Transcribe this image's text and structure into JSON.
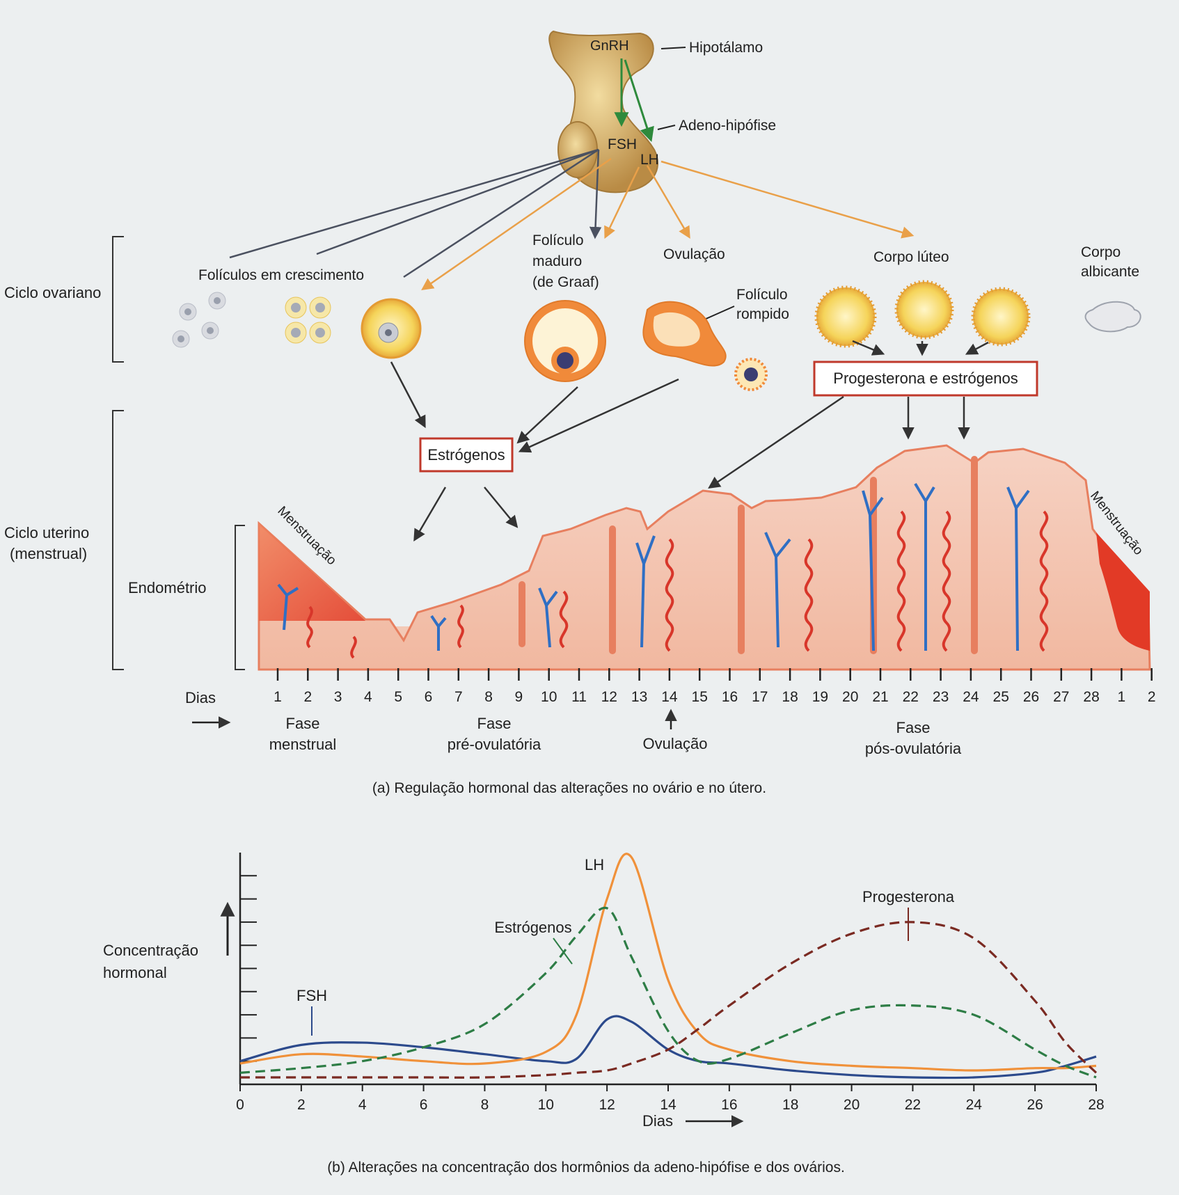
{
  "hormone_labels": {
    "gnrh": "GnRH",
    "hipotalamo": "Hipotálamo",
    "adeno": "Adeno-hipófise",
    "fsh": "FSH",
    "lh": "LH"
  },
  "ovarian_labels": {
    "ciclo_ovariano": "Ciclo ovariano",
    "foliculos": "Folículos em crescimento",
    "foliculo_maduro": [
      "Folículo",
      "maduro",
      "(de Graaf)"
    ],
    "ovulacao": "Ovulação",
    "foliculo_rompido": [
      "Folículo",
      "rompido"
    ],
    "corpo_luteo": "Corpo lúteo",
    "corpo_albicante": [
      "Corpo",
      "albicante"
    ],
    "estrogenos_box": "Estrógenos",
    "progesterona_box": "Progesterona e estrógenos"
  },
  "uterine_labels": {
    "ciclo_uterino": [
      "Ciclo uterino",
      "(menstrual)"
    ],
    "endometrio": "Endométrio",
    "menstruacao": "Menstruação"
  },
  "timeline": {
    "dias": "Dias",
    "days": [
      "1",
      "2",
      "3",
      "4",
      "5",
      "6",
      "7",
      "8",
      "9",
      "10",
      "11",
      "12",
      "13",
      "14",
      "15",
      "16",
      "17",
      "18",
      "19",
      "20",
      "21",
      "22",
      "23",
      "24",
      "25",
      "26",
      "27",
      "28",
      "1",
      "2"
    ],
    "fase_menstrual": [
      "Fase",
      "menstrual"
    ],
    "fase_pre": [
      "Fase",
      "pré-ovulatória"
    ],
    "ovulacao": "Ovulação",
    "fase_pos": [
      "Fase",
      "pós-ovulatória"
    ]
  },
  "caption_a": "(a) Regulação hormonal das alterações no ovário e no útero.",
  "caption_b": "(b) Alterações na concentração dos hormônios da adeno-hipófise e dos ovários.",
  "chart_data": {
    "type": "line",
    "xlabel": "Dias",
    "ylabel": "Concentração hormonal",
    "xlim": [
      0,
      28
    ],
    "x_ticks": [
      0,
      2,
      4,
      6,
      8,
      10,
      12,
      14,
      16,
      18,
      20,
      22,
      24,
      26,
      28
    ],
    "ylim": [
      0,
      10
    ],
    "x": [
      0,
      2,
      4,
      6,
      8,
      10,
      11,
      12,
      12.8,
      14,
      15,
      16,
      18,
      20,
      22,
      24,
      26,
      27,
      28
    ],
    "series": [
      {
        "name": "FSH",
        "color": "#2c4a8c",
        "dash": false,
        "values": [
          1.0,
          1.7,
          1.8,
          1.6,
          1.3,
          1.0,
          1.1,
          2.8,
          2.7,
          1.5,
          1.0,
          0.9,
          0.6,
          0.4,
          0.3,
          0.3,
          0.5,
          0.8,
          1.2
        ]
      },
      {
        "name": "LH",
        "color": "#f0913a",
        "dash": false,
        "values": [
          0.9,
          1.3,
          1.2,
          1.0,
          0.9,
          1.4,
          3.0,
          8.0,
          9.8,
          4.5,
          2.2,
          1.5,
          1.0,
          0.8,
          0.7,
          0.6,
          0.7,
          0.7,
          0.8
        ]
      },
      {
        "name": "Estrógenos",
        "color": "#2e7d46",
        "dash": true,
        "values": [
          0.5,
          0.7,
          1.0,
          1.6,
          2.6,
          4.8,
          6.4,
          7.6,
          5.5,
          2.3,
          1.0,
          1.1,
          2.2,
          3.2,
          3.4,
          3.0,
          1.5,
          0.8,
          0.3
        ]
      },
      {
        "name": "Progesterona",
        "color": "#7a2a22",
        "dash": true,
        "values": [
          0.3,
          0.3,
          0.3,
          0.3,
          0.3,
          0.4,
          0.5,
          0.6,
          0.9,
          1.5,
          2.4,
          3.4,
          5.2,
          6.5,
          7.0,
          6.3,
          3.6,
          1.8,
          0.5
        ]
      }
    ]
  }
}
